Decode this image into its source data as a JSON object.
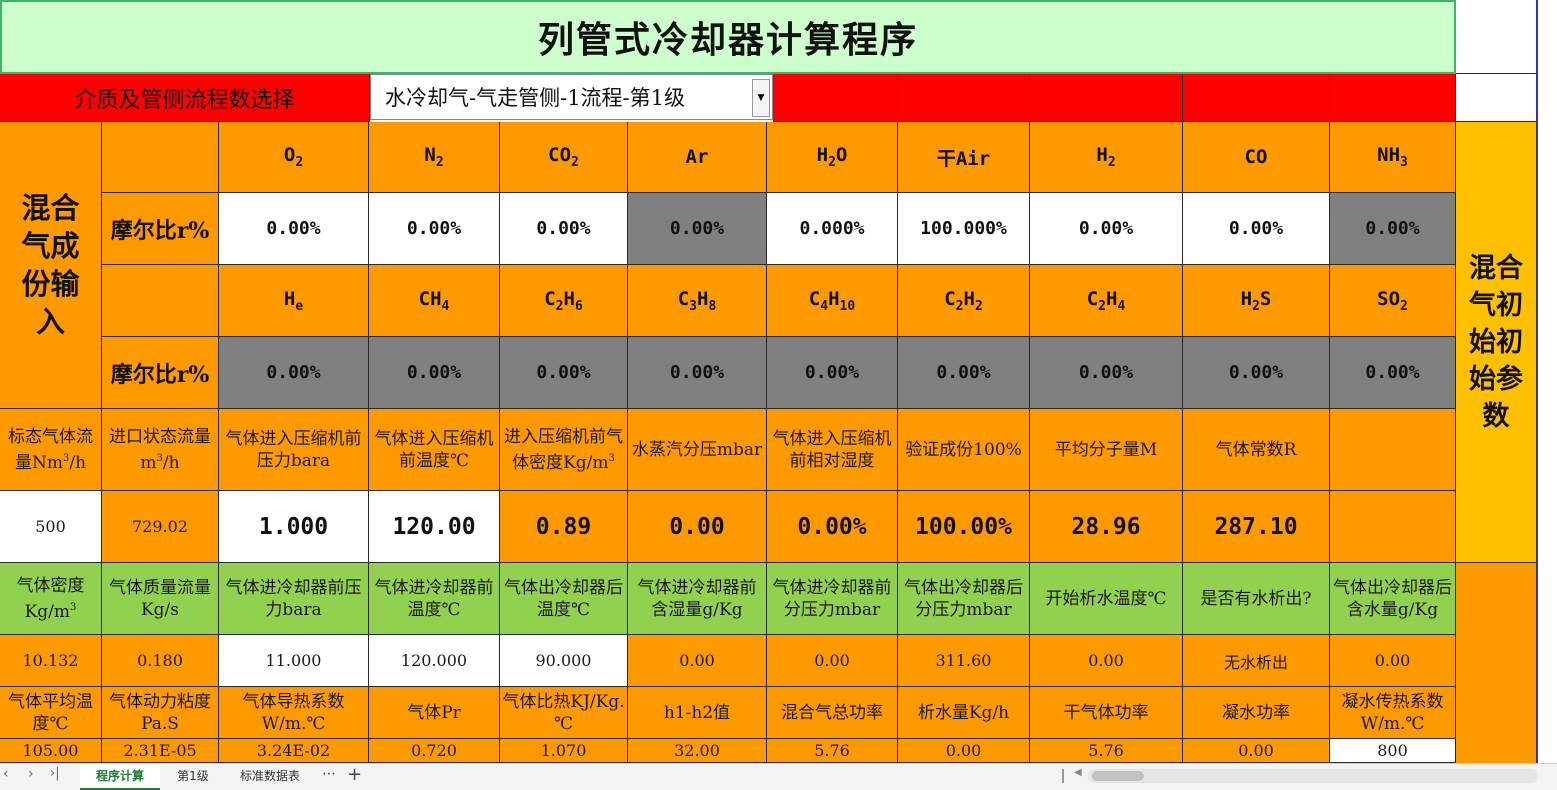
{
  "title": "列管式冷却器计算程序",
  "selector": {
    "label": "介质及管侧流程数选择",
    "value": "水冷却气-气走管侧-1流程-第1级"
  },
  "sections": {
    "left": "混合气成份输入",
    "right": "混合气初始初始参数"
  },
  "molar_label": "摩尔比r%",
  "gases_row1": [
    {
      "name": "O",
      "sub": "2",
      "value": "0.00%"
    },
    {
      "name": "N",
      "sub": "2",
      "value": "0.00%"
    },
    {
      "name": "CO",
      "sub": "2",
      "value": "0.00%"
    },
    {
      "name": "Ar",
      "sub": "",
      "value": "0.00%"
    },
    {
      "name": "H",
      "sub": "2",
      "tail": "O",
      "value": "0.000%"
    },
    {
      "name": "干Air",
      "sub": "",
      "value": "100.000%"
    },
    {
      "name": "H",
      "sub": "2",
      "value": "0.00%"
    },
    {
      "name": "CO",
      "sub": "",
      "value": "0.00%"
    },
    {
      "name": "NH",
      "sub": "3",
      "value": "0.00%"
    }
  ],
  "gases_row2": [
    {
      "name": "H",
      "sub": "e",
      "value": "0.00%"
    },
    {
      "name": "CH",
      "sub": "4",
      "value": "0.00%"
    },
    {
      "name": "C",
      "sub": "2",
      "tail": "H",
      "sub2": "6",
      "value": "0.00%"
    },
    {
      "name": "C",
      "sub": "3",
      "tail": "H",
      "sub2": "8",
      "value": "0.00%"
    },
    {
      "name": "C",
      "sub": "4",
      "tail": "H",
      "sub2": "10",
      "value": "0.00%"
    },
    {
      "name": "C",
      "sub": "2",
      "tail": "H",
      "sub2": "2",
      "value": "0.00%"
    },
    {
      "name": "C",
      "sub": "2",
      "tail": "H",
      "sub2": "4",
      "value": "0.00%"
    },
    {
      "name": "H",
      "sub": "2",
      "tail": "S",
      "value": "0.00%"
    },
    {
      "name": "SO",
      "sub": "2",
      "value": "0.00%"
    }
  ],
  "params1": {
    "headers": [
      {
        "pre": "标态气体流量Nm",
        "sup": "3",
        "post": "/h"
      },
      {
        "pre": "进口状态流量m",
        "sup": "3",
        "post": "/h"
      },
      {
        "pre": "气体进入压缩机前压力bara"
      },
      {
        "pre": "气体进入压缩机前温度℃"
      },
      {
        "pre": "进入压缩机前气体密度Kg/m",
        "sup": "3"
      },
      {
        "pre": "水蒸汽分压mbar"
      },
      {
        "pre": "气体进入压缩机前相对湿度"
      },
      {
        "pre": "验证成份100%"
      },
      {
        "pre": "平均分子量M"
      },
      {
        "pre": "气体常数R"
      },
      {
        "pre": ""
      }
    ],
    "values": [
      "500",
      "729.02",
      "1.000",
      "120.00",
      "0.89",
      "0.00",
      "0.00%",
      "100.00%",
      "28.96",
      "287.10",
      ""
    ]
  },
  "params2": {
    "headers": [
      {
        "pre": "气体密度Kg/m",
        "sup": "3"
      },
      {
        "pre": "气体质量流量Kg/s"
      },
      {
        "pre": "气体进冷却器前压力bara"
      },
      {
        "pre": "气体进冷却器前温度℃"
      },
      {
        "pre": "气体出冷却器后温度℃"
      },
      {
        "pre": "气体进冷却器前含湿量g/Kg"
      },
      {
        "pre": "气体进冷却器前分压力mbar"
      },
      {
        "pre": "气体出冷却器后分压力mbar"
      },
      {
        "pre": "开始析水温度℃"
      },
      {
        "pre": "是否有水析出?"
      },
      {
        "pre": "气体出冷却器后含水量g/Kg"
      }
    ],
    "values": [
      "10.132",
      "0.180",
      "11.000",
      "120.000",
      "90.000",
      "0.00",
      "0.00",
      "311.60",
      "0.00",
      "无水析出",
      "0.00"
    ]
  },
  "params3": {
    "headers": [
      {
        "pre": "气体平均温度℃"
      },
      {
        "pre": "气体动力粘度Pa.S"
      },
      {
        "pre": "气体导热系数W/m.℃"
      },
      {
        "pre": "气体Pr"
      },
      {
        "pre": "气体比热KJ/Kg.℃"
      },
      {
        "pre": "h1-h2值"
      },
      {
        "pre": "混合气总功率"
      },
      {
        "pre": "析水量Kg/h"
      },
      {
        "pre": "干气体功率"
      },
      {
        "pre": "凝水功率"
      },
      {
        "pre": "凝水传热系数W/m.℃"
      }
    ],
    "values": [
      "105.00",
      "2.31E-05",
      "3.24E-02",
      "0.720",
      "1.070",
      "32.00",
      "5.76",
      "0.00",
      "5.76",
      "0.00",
      "800"
    ]
  },
  "sheet_tabs": [
    "程序计算",
    "第1级",
    "标准数据表"
  ],
  "active_tab": 0,
  "colors": {
    "orange": "#ff9900",
    "green": "#92d050",
    "red": "#ff0000",
    "yellow": "#ffc000",
    "title_bg": "#ccffcc",
    "tab_active": "#1e7e34"
  }
}
